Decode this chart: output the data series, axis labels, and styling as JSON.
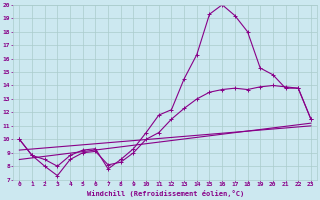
{
  "xlabel": "Windchill (Refroidissement éolien,°C)",
  "background_color": "#cce8f0",
  "line_color": "#880088",
  "xlim": [
    -0.5,
    23.5
  ],
  "ylim": [
    7,
    20
  ],
  "xticks": [
    0,
    1,
    2,
    3,
    4,
    5,
    6,
    7,
    8,
    9,
    10,
    11,
    12,
    13,
    14,
    15,
    16,
    17,
    18,
    19,
    20,
    21,
    22,
    23
  ],
  "yticks": [
    7,
    8,
    9,
    10,
    11,
    12,
    13,
    14,
    15,
    16,
    17,
    18,
    19,
    20
  ],
  "grid_color": "#aacccc",
  "curve1_x": [
    0,
    1,
    2,
    3,
    4,
    5,
    6,
    7,
    8,
    9,
    10,
    11,
    12,
    13,
    14,
    15,
    16,
    17,
    18,
    19,
    20,
    21,
    22,
    23
  ],
  "curve1_y": [
    10.0,
    8.8,
    8.5,
    8.0,
    8.8,
    9.2,
    9.3,
    7.8,
    8.5,
    9.3,
    10.5,
    11.8,
    12.2,
    14.5,
    16.3,
    19.3,
    20.0,
    19.2,
    18.0,
    15.3,
    14.8,
    13.8,
    13.8,
    11.5
  ],
  "curve2_x": [
    0,
    1,
    2,
    3,
    4,
    5,
    6,
    7,
    8,
    9,
    10,
    11,
    12,
    13,
    14,
    15,
    16,
    17,
    18,
    19,
    20,
    21,
    22,
    23
  ],
  "curve2_y": [
    10.0,
    8.8,
    8.0,
    7.3,
    8.5,
    9.0,
    9.1,
    8.1,
    8.3,
    9.0,
    10.0,
    10.5,
    11.5,
    12.3,
    13.0,
    13.5,
    13.7,
    13.8,
    13.7,
    13.9,
    14.0,
    13.9,
    13.8,
    11.5
  ],
  "curve3_x": [
    0,
    23
  ],
  "curve3_y": [
    9.2,
    11.0
  ],
  "curve4_x": [
    0,
    23
  ],
  "curve4_y": [
    8.5,
    11.2
  ]
}
